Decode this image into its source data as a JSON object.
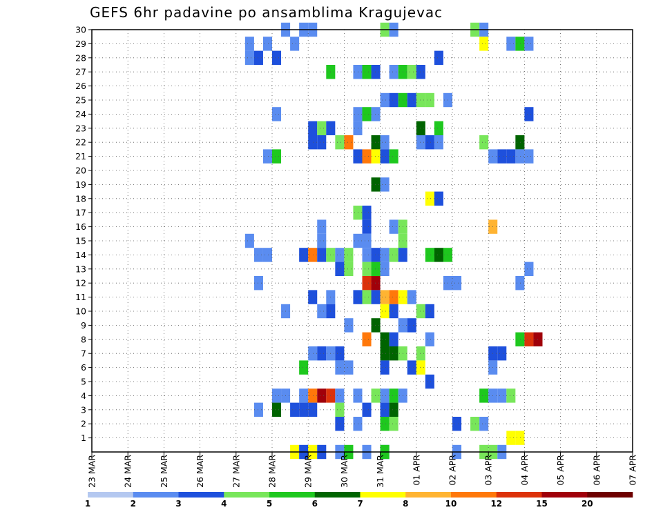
{
  "chart_data": {
    "type": "heatmap",
    "title": "GEFS 6hr padavine po ansamblima Kragujevac",
    "y_ticks": [
      "1",
      "2",
      "3",
      "4",
      "5",
      "6",
      "7",
      "8",
      "9",
      "10",
      "11",
      "12",
      "13",
      "14",
      "15",
      "16",
      "17",
      "18",
      "19",
      "20",
      "21",
      "22",
      "23",
      "24",
      "25",
      "26",
      "27",
      "28",
      "29",
      "30"
    ],
    "x_ticks": [
      "23 MAR",
      "24 MAR",
      "25 MAR",
      "26 MAR",
      "27 MAR",
      "28 MAR",
      "29 MAR",
      "30 MAR",
      "31 MAR",
      "01 APR",
      "02 APR",
      "03 APR",
      "04 APR",
      "05 APR",
      "06 APR",
      "07 APR"
    ],
    "ylim": [
      0,
      30
    ],
    "grid": true,
    "levels": [
      "1",
      "2",
      "3",
      "4",
      "5",
      "6",
      "7",
      "8",
      "10",
      "12",
      "15",
      "20"
    ],
    "colors": [
      "#b4c8f0",
      "#5a8cf0",
      "#1e50dc",
      "#78e65a",
      "#1ec81e",
      "#006400",
      "#ffff00",
      "#ffb432",
      "#ff780a",
      "#dc320a",
      "#a0000a",
      "#6e0000"
    ],
    "cells": [
      [
        21,
        30,
        1
      ],
      [
        23,
        30,
        1
      ],
      [
        24,
        30,
        1
      ],
      [
        32,
        30,
        3
      ],
      [
        33,
        30,
        1
      ],
      [
        42,
        30,
        3
      ],
      [
        43,
        30,
        1
      ],
      [
        17,
        29,
        1
      ],
      [
        22,
        29,
        1
      ],
      [
        19,
        29,
        1
      ],
      [
        43,
        29,
        6
      ],
      [
        46,
        29,
        1
      ],
      [
        47,
        29,
        4
      ],
      [
        48,
        29,
        1
      ],
      [
        17,
        28,
        1
      ],
      [
        18,
        28,
        2
      ],
      [
        20,
        28,
        2
      ],
      [
        38,
        28,
        2
      ],
      [
        26,
        27,
        4
      ],
      [
        29,
        27,
        1
      ],
      [
        30,
        27,
        4
      ],
      [
        31,
        27,
        2
      ],
      [
        33,
        27,
        1
      ],
      [
        34,
        27,
        4
      ],
      [
        35,
        27,
        3
      ],
      [
        36,
        27,
        2
      ],
      [
        32,
        25,
        1
      ],
      [
        33,
        25,
        2
      ],
      [
        34,
        25,
        4
      ],
      [
        35,
        25,
        2
      ],
      [
        36,
        25,
        3
      ],
      [
        37,
        25,
        3
      ],
      [
        39,
        25,
        1
      ],
      [
        20,
        24,
        1
      ],
      [
        29,
        24,
        1
      ],
      [
        30,
        24,
        4
      ],
      [
        31,
        24,
        1
      ],
      [
        48,
        24,
        2
      ],
      [
        24,
        23,
        2
      ],
      [
        25,
        23,
        3
      ],
      [
        26,
        23,
        2
      ],
      [
        29,
        23,
        1
      ],
      [
        36,
        23,
        5
      ],
      [
        38,
        23,
        4
      ],
      [
        24,
        22,
        2
      ],
      [
        25,
        22,
        2
      ],
      [
        27,
        22,
        3
      ],
      [
        28,
        22,
        8
      ],
      [
        31,
        22,
        5
      ],
      [
        32,
        22,
        1
      ],
      [
        36,
        22,
        1
      ],
      [
        37,
        22,
        2
      ],
      [
        38,
        22,
        1
      ],
      [
        43,
        22,
        3
      ],
      [
        47,
        22,
        5
      ],
      [
        19,
        21,
        1
      ],
      [
        20,
        21,
        4
      ],
      [
        29,
        21,
        2
      ],
      [
        30,
        21,
        8
      ],
      [
        31,
        21,
        6
      ],
      [
        32,
        21,
        2
      ],
      [
        33,
        21,
        4
      ],
      [
        44,
        21,
        1
      ],
      [
        45,
        21,
        2
      ],
      [
        46,
        21,
        2
      ],
      [
        47,
        21,
        1
      ],
      [
        48,
        21,
        1
      ],
      [
        31,
        19,
        5
      ],
      [
        32,
        19,
        1
      ],
      [
        37,
        18,
        6
      ],
      [
        38,
        18,
        2
      ],
      [
        29,
        17,
        3
      ],
      [
        30,
        17,
        2
      ],
      [
        25,
        16,
        1
      ],
      [
        30,
        16,
        2
      ],
      [
        33,
        16,
        1
      ],
      [
        34,
        16,
        3
      ],
      [
        44,
        16,
        7
      ],
      [
        17,
        15,
        1
      ],
      [
        25,
        15,
        1
      ],
      [
        29,
        15,
        1
      ],
      [
        30,
        15,
        1
      ],
      [
        34,
        15,
        3
      ],
      [
        18,
        14,
        1
      ],
      [
        19,
        14,
        1
      ],
      [
        23,
        14,
        2
      ],
      [
        24,
        14,
        8
      ],
      [
        25,
        14,
        2
      ],
      [
        26,
        14,
        3
      ],
      [
        27,
        14,
        1
      ],
      [
        28,
        14,
        3
      ],
      [
        30,
        14,
        1
      ],
      [
        31,
        14,
        2
      ],
      [
        32,
        14,
        1
      ],
      [
        33,
        14,
        3
      ],
      [
        34,
        14,
        2
      ],
      [
        37,
        14,
        4
      ],
      [
        38,
        14,
        5
      ],
      [
        39,
        14,
        4
      ],
      [
        27,
        13,
        2
      ],
      [
        28,
        13,
        3
      ],
      [
        30,
        13,
        3
      ],
      [
        31,
        13,
        4
      ],
      [
        32,
        13,
        1
      ],
      [
        48,
        13,
        1
      ],
      [
        18,
        12,
        1
      ],
      [
        30,
        12,
        9
      ],
      [
        31,
        12,
        10
      ],
      [
        39,
        12,
        1
      ],
      [
        40,
        12,
        1
      ],
      [
        47,
        12,
        1
      ],
      [
        24,
        11,
        2
      ],
      [
        26,
        11,
        1
      ],
      [
        29,
        11,
        2
      ],
      [
        30,
        11,
        3
      ],
      [
        31,
        11,
        2
      ],
      [
        32,
        11,
        7
      ],
      [
        33,
        11,
        8
      ],
      [
        34,
        11,
        6
      ],
      [
        35,
        11,
        1
      ],
      [
        21,
        10,
        1
      ],
      [
        25,
        10,
        1
      ],
      [
        26,
        10,
        2
      ],
      [
        32,
        10,
        6
      ],
      [
        33,
        10,
        2
      ],
      [
        36,
        10,
        3
      ],
      [
        37,
        10,
        2
      ],
      [
        28,
        9,
        1
      ],
      [
        31,
        9,
        5
      ],
      [
        34,
        9,
        1
      ],
      [
        35,
        9,
        2
      ],
      [
        30,
        8,
        8
      ],
      [
        32,
        8,
        5
      ],
      [
        33,
        8,
        2
      ],
      [
        37,
        8,
        1
      ],
      [
        47,
        8,
        4
      ],
      [
        48,
        8,
        9
      ],
      [
        49,
        8,
        10
      ],
      [
        24,
        7,
        1
      ],
      [
        25,
        7,
        2
      ],
      [
        26,
        7,
        1
      ],
      [
        27,
        7,
        2
      ],
      [
        32,
        7,
        5
      ],
      [
        33,
        7,
        5
      ],
      [
        34,
        7,
        3
      ],
      [
        36,
        7,
        3
      ],
      [
        44,
        7,
        2
      ],
      [
        45,
        7,
        2
      ],
      [
        23,
        6,
        4
      ],
      [
        27,
        6,
        1
      ],
      [
        28,
        6,
        1
      ],
      [
        32,
        6,
        2
      ],
      [
        35,
        6,
        2
      ],
      [
        36,
        6,
        6
      ],
      [
        44,
        6,
        1
      ],
      [
        37,
        5,
        2
      ],
      [
        20,
        4,
        1
      ],
      [
        21,
        4,
        1
      ],
      [
        23,
        4,
        1
      ],
      [
        24,
        4,
        8
      ],
      [
        25,
        4,
        10
      ],
      [
        26,
        4,
        9
      ],
      [
        27,
        4,
        1
      ],
      [
        29,
        4,
        1
      ],
      [
        31,
        4,
        3
      ],
      [
        32,
        4,
        1
      ],
      [
        33,
        4,
        4
      ],
      [
        34,
        4,
        1
      ],
      [
        43,
        4,
        4
      ],
      [
        44,
        4,
        1
      ],
      [
        45,
        4,
        1
      ],
      [
        46,
        4,
        3
      ],
      [
        18,
        3,
        1
      ],
      [
        20,
        3,
        5
      ],
      [
        22,
        3,
        2
      ],
      [
        23,
        3,
        2
      ],
      [
        24,
        3,
        2
      ],
      [
        27,
        3,
        3
      ],
      [
        30,
        3,
        2
      ],
      [
        32,
        3,
        2
      ],
      [
        33,
        3,
        5
      ],
      [
        27,
        2,
        2
      ],
      [
        29,
        2,
        1
      ],
      [
        32,
        2,
        4
      ],
      [
        33,
        2,
        3
      ],
      [
        40,
        2,
        2
      ],
      [
        42,
        2,
        3
      ],
      [
        43,
        2,
        1
      ],
      [
        46,
        1,
        6
      ],
      [
        47,
        1,
        6
      ],
      [
        32,
        0,
        1
      ],
      [
        22,
        0,
        6
      ],
      [
        23,
        0,
        2
      ],
      [
        24,
        0,
        6
      ],
      [
        25,
        0,
        2
      ],
      [
        27,
        0,
        1
      ],
      [
        28,
        0,
        4
      ],
      [
        30,
        0,
        1
      ],
      [
        32,
        0,
        4
      ],
      [
        40,
        0,
        1
      ],
      [
        43,
        0,
        3
      ],
      [
        44,
        0,
        3
      ],
      [
        45,
        0,
        1
      ]
    ],
    "notes": "cells: [x index in 6-hour steps from 23 MAR 00Z, ensemble member (y), level index into colors]"
  }
}
